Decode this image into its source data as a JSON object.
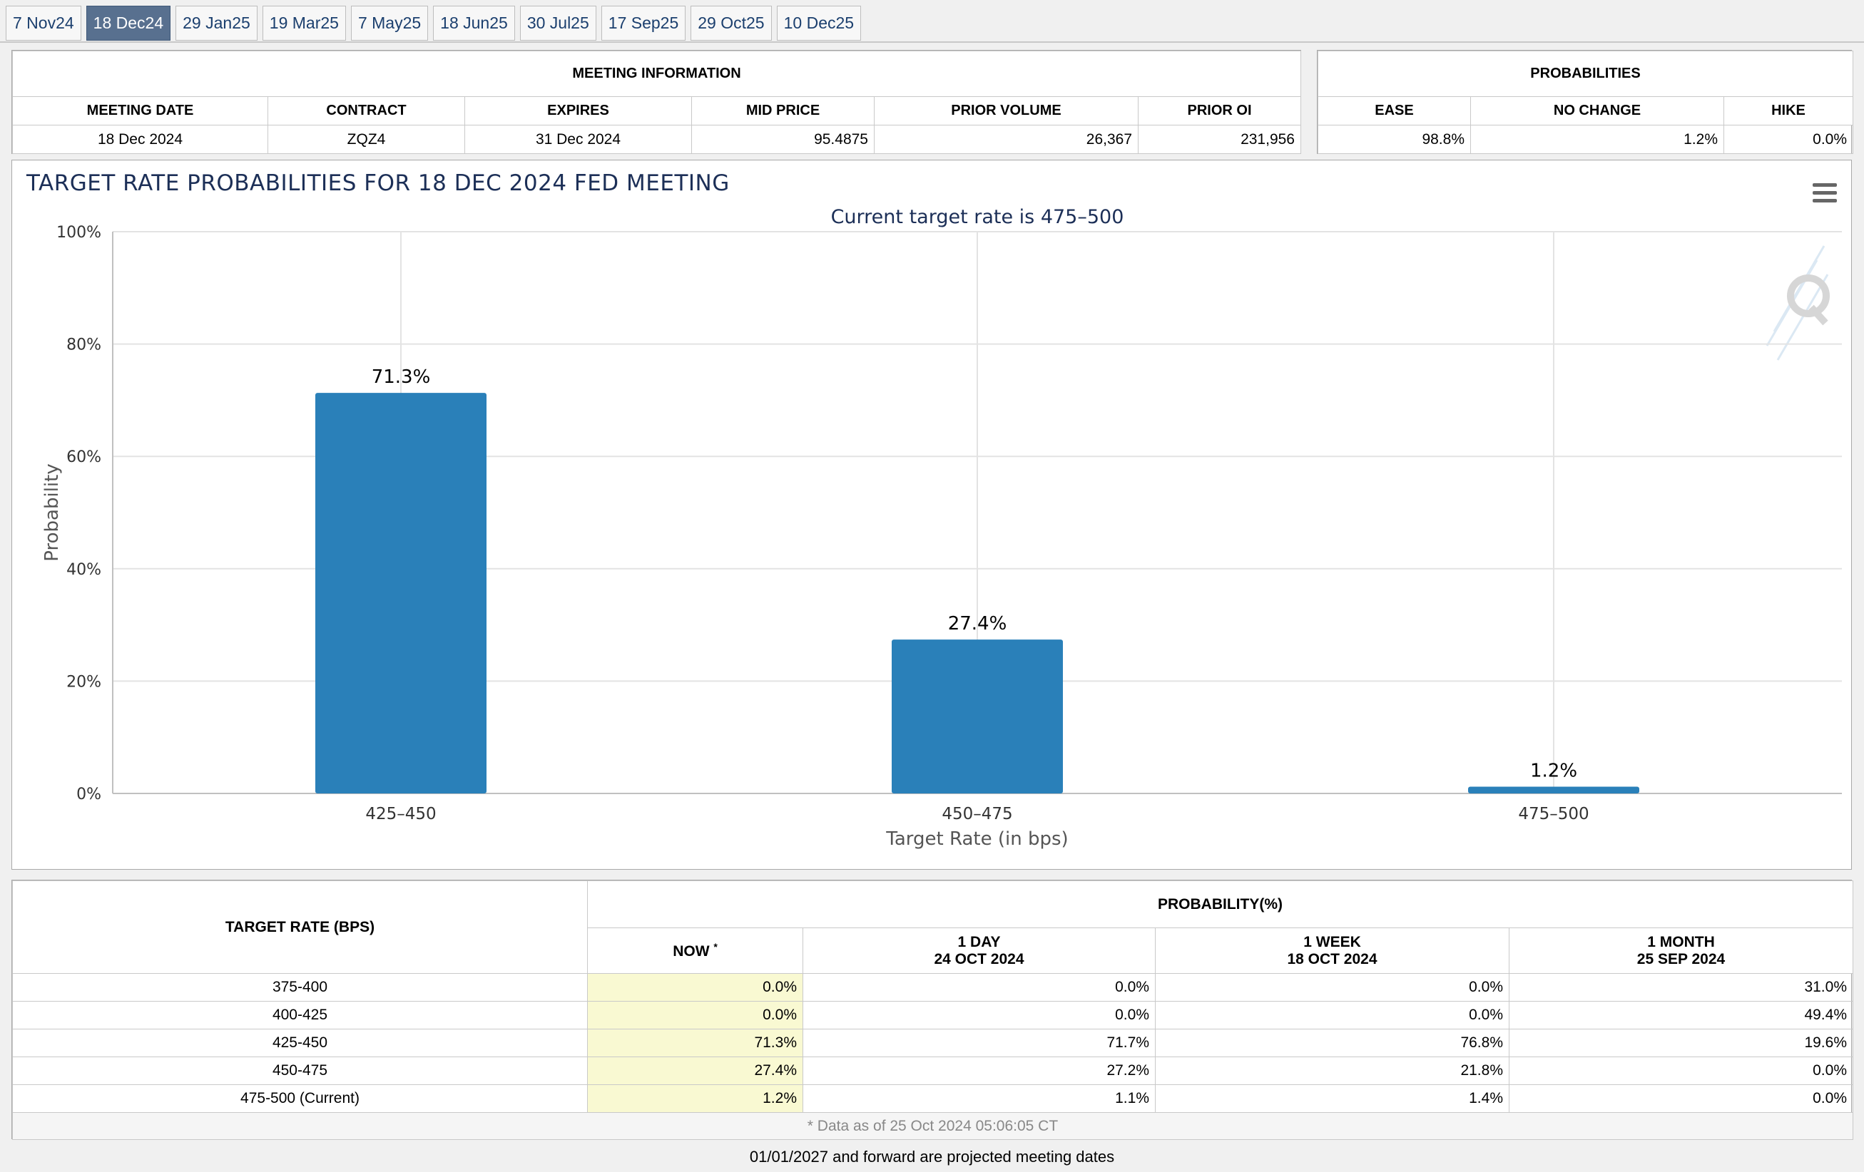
{
  "tabs": [
    {
      "label": "7 Nov24",
      "active": false
    },
    {
      "label": "18 Dec24",
      "active": true
    },
    {
      "label": "29 Jan25",
      "active": false
    },
    {
      "label": "19 Mar25",
      "active": false
    },
    {
      "label": "7 May25",
      "active": false
    },
    {
      "label": "18 Jun25",
      "active": false
    },
    {
      "label": "30 Jul25",
      "active": false
    },
    {
      "label": "17 Sep25",
      "active": false
    },
    {
      "label": "29 Oct25",
      "active": false
    },
    {
      "label": "10 Dec25",
      "active": false
    }
  ],
  "meeting_info": {
    "title": "MEETING INFORMATION",
    "headers": [
      "MEETING DATE",
      "CONTRACT",
      "EXPIRES",
      "MID PRICE",
      "PRIOR VOLUME",
      "PRIOR OI"
    ],
    "values": [
      "18 Dec 2024",
      "ZQZ4",
      "31 Dec 2024",
      "95.4875",
      "26,367",
      "231,956"
    ]
  },
  "probabilities": {
    "title": "PROBABILITIES",
    "headers": [
      "EASE",
      "NO CHANGE",
      "HIKE"
    ],
    "values": [
      "98.8%",
      "1.2%",
      "0.0%"
    ]
  },
  "chart": {
    "title": "TARGET RATE PROBABILITIES FOR 18 DEC 2024 FED MEETING",
    "subtitle": "Current target rate is 475–500",
    "colors": {
      "bar": "#2a80b9",
      "grid": "#e3e3e3",
      "axis_text": "#333333",
      "subtitle": "#1c2f57"
    }
  },
  "chart_data": {
    "type": "bar",
    "title": "TARGET RATE PROBABILITIES FOR 18 DEC 2024 FED MEETING",
    "subtitle": "Current target rate is 475–500",
    "categories": [
      "425–450",
      "450–475",
      "475–500"
    ],
    "values": [
      71.3,
      27.4,
      1.2
    ],
    "data_labels": [
      "71.3%",
      "27.4%",
      "1.2%"
    ],
    "xlabel": "Target Rate (in bps)",
    "ylabel": "Probability",
    "ylim": [
      0,
      100
    ],
    "yticks": [
      "0%",
      "20%",
      "40%",
      "60%",
      "80%",
      "100%"
    ],
    "ytick_values": [
      0,
      20,
      40,
      60,
      80,
      100
    ],
    "grid": true,
    "legend": "none"
  },
  "prob_table": {
    "col_target": "TARGET RATE (BPS)",
    "group_header": "PROBABILITY(%)",
    "now_label": "NOW",
    "now_mark": "*",
    "day": {
      "l1": "1 DAY",
      "l2": "24 OCT 2024"
    },
    "week": {
      "l1": "1 WEEK",
      "l2": "18 OCT 2024"
    },
    "month": {
      "l1": "1 MONTH",
      "l2": "25 SEP 2024"
    },
    "rows": [
      {
        "rate": "375-400",
        "now": "0.0%",
        "day": "0.0%",
        "week": "0.0%",
        "month": "31.0%"
      },
      {
        "rate": "400-425",
        "now": "0.0%",
        "day": "0.0%",
        "week": "0.0%",
        "month": "49.4%"
      },
      {
        "rate": "425-450",
        "now": "71.3%",
        "day": "71.7%",
        "week": "76.8%",
        "month": "19.6%"
      },
      {
        "rate": "450-475",
        "now": "27.4%",
        "day": "27.2%",
        "week": "21.8%",
        "month": "0.0%"
      },
      {
        "rate": "475-500 (Current)",
        "now": "1.2%",
        "day": "1.1%",
        "week": "1.4%",
        "month": "0.0%"
      }
    ],
    "footnote": "* Data as of 25 Oct 2024 05:06:05 CT"
  },
  "bottom_note": "01/01/2027 and forward are projected meeting dates"
}
